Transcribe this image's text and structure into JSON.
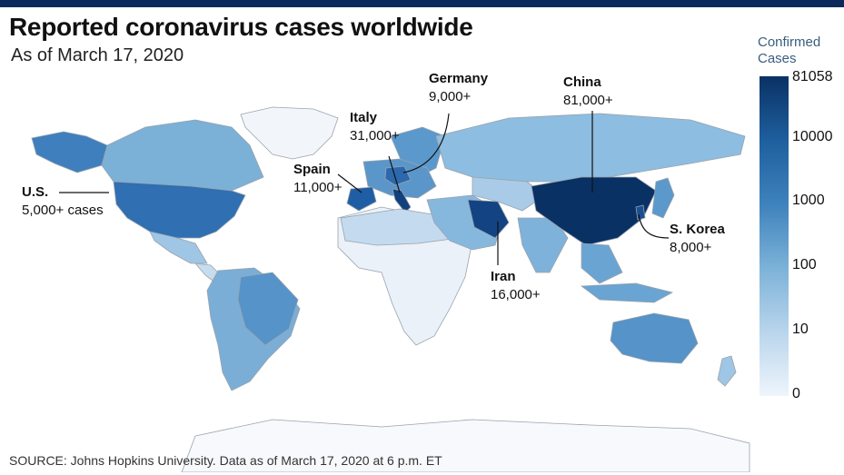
{
  "title": "Reported coronavirus cases worldwide",
  "subtitle": "As of March 17, 2020",
  "legend": {
    "title_line1": "Confirmed",
    "title_line2": "Cases",
    "ticks": [
      "81058",
      "10000",
      "1000",
      "100",
      "10",
      "0"
    ],
    "colors": [
      "#0a3164",
      "#1e5f9e",
      "#3e82bc",
      "#7cb2d8",
      "#b9d5ec",
      "#eef5fc"
    ]
  },
  "callouts": {
    "germany": {
      "name": "Germany",
      "value": "9,000+"
    },
    "china": {
      "name": "China",
      "value": "81,000+"
    },
    "italy": {
      "name": "Italy",
      "value": "31,000+"
    },
    "spain": {
      "name": "Spain",
      "value": "11,000+"
    },
    "us": {
      "name": "U.S.",
      "value": "5,000+ cases"
    },
    "skorea": {
      "name": "S. Korea",
      "value": "8,000+"
    },
    "iran": {
      "name": "Iran",
      "value": "16,000+"
    }
  },
  "source": "SOURCE: Johns Hopkins University. Data as of March 17, 2020 at 6 p.m. ET"
}
